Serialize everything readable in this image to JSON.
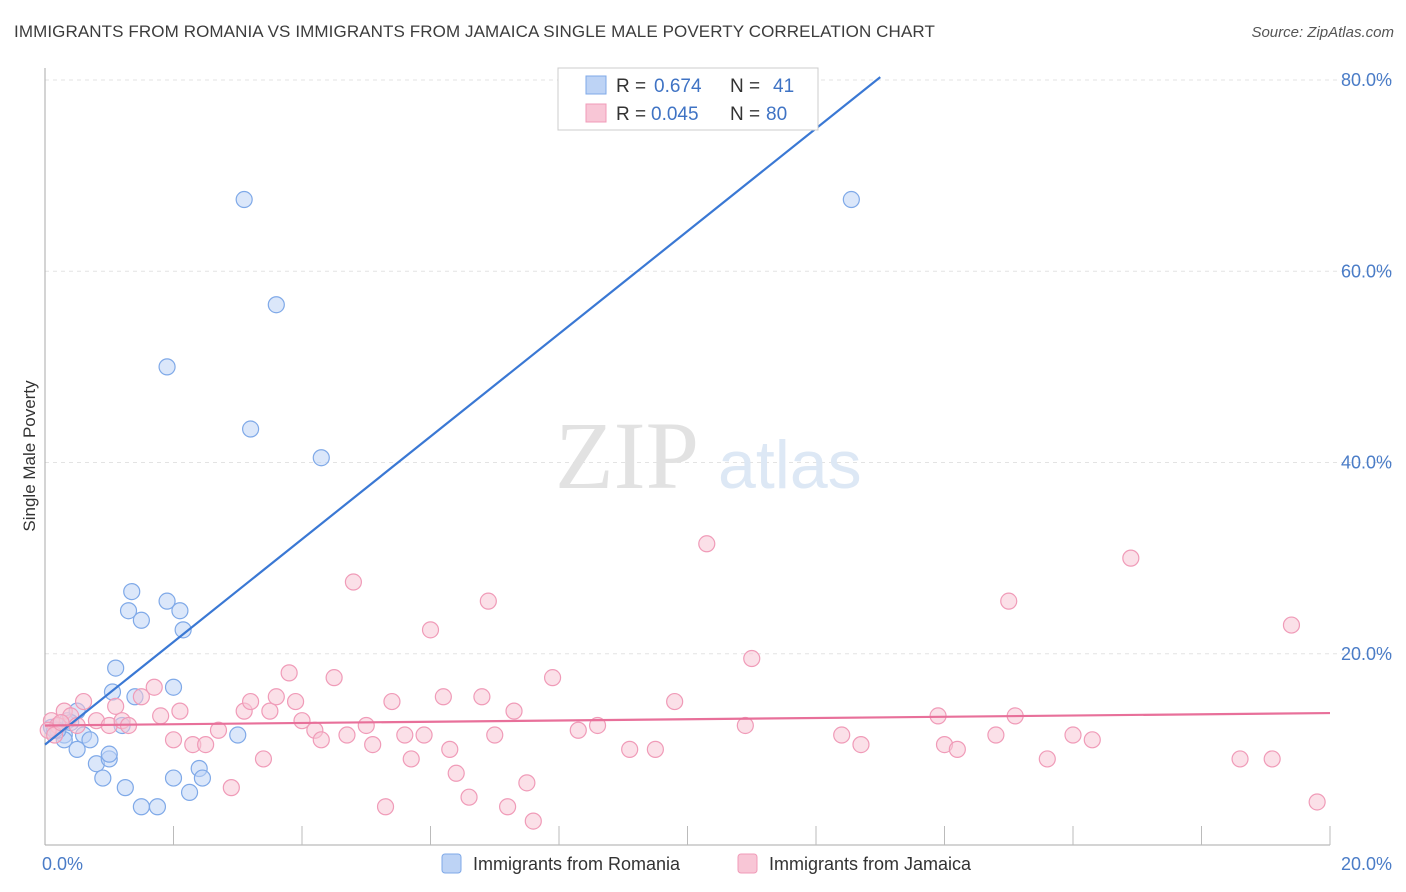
{
  "title": "IMMIGRANTS FROM ROMANIA VS IMMIGRANTS FROM JAMAICA SINGLE MALE POVERTY CORRELATION CHART",
  "source": "Source: ZipAtlas.com",
  "watermark": {
    "zip": "ZIP",
    "atlas": "atlas"
  },
  "legend": {
    "r_label": "R =",
    "n_label": "N =",
    "rows": [
      {
        "series": "Immigrants from Romania",
        "r": "0.674",
        "n": "41"
      },
      {
        "series": "Immigrants from Jamaica",
        "r": "0.045",
        "n": "80"
      }
    ]
  },
  "chart_data": {
    "type": "scatter",
    "title": "IMMIGRANTS FROM ROMANIA VS IMMIGRANTS FROM JAMAICA SINGLE MALE POVERTY CORRELATION CHART",
    "xlabel": "",
    "ylabel": "Single Male Poverty",
    "xlim": [
      0,
      20
    ],
    "ylim": [
      0,
      80
    ],
    "x_tick_labels": [
      "0.0%",
      "20.0%"
    ],
    "y_ticks": [
      20,
      40,
      60,
      80
    ],
    "y_tick_labels": [
      "20.0%",
      "40.0%",
      "60.0%",
      "80.0%"
    ],
    "grid": true,
    "legend_position": "top-center",
    "series": [
      {
        "name": "Immigrants from Romania",
        "color": "#7fa9e8",
        "fill": "#bdd3f5",
        "trend": {
          "x": [
            0,
            13.0
          ],
          "y": [
            10.5,
            80.3
          ],
          "color": "#3a78d4"
        },
        "points": [
          [
            0.1,
            12.3
          ],
          [
            0.2,
            12.5
          ],
          [
            0.3,
            11.5
          ],
          [
            0.35,
            13.0
          ],
          [
            0.5,
            14.0
          ],
          [
            0.6,
            11.5
          ],
          [
            0.7,
            11.0
          ],
          [
            0.5,
            10.0
          ],
          [
            0.3,
            11.0
          ],
          [
            0.8,
            8.5
          ],
          [
            0.9,
            7.0
          ],
          [
            1.0,
            9.0
          ],
          [
            1.0,
            9.5
          ],
          [
            1.1,
            18.5
          ],
          [
            1.05,
            16.0
          ],
          [
            1.2,
            12.5
          ],
          [
            1.25,
            6.0
          ],
          [
            1.3,
            24.5
          ],
          [
            1.35,
            26.5
          ],
          [
            1.4,
            15.5
          ],
          [
            1.5,
            23.5
          ],
          [
            1.5,
            4.0
          ],
          [
            1.75,
            4.0
          ],
          [
            1.9,
            50.0
          ],
          [
            1.9,
            25.5
          ],
          [
            2.0,
            7.0
          ],
          [
            2.0,
            16.5
          ],
          [
            2.1,
            24.5
          ],
          [
            2.15,
            22.5
          ],
          [
            2.25,
            5.5
          ],
          [
            2.4,
            8.0
          ],
          [
            2.45,
            7.0
          ],
          [
            3.0,
            11.5
          ],
          [
            3.1,
            67.5
          ],
          [
            3.2,
            43.5
          ],
          [
            3.6,
            56.5
          ],
          [
            4.3,
            40.5
          ],
          [
            12.55,
            67.5
          ],
          [
            0.2,
            12.0
          ],
          [
            0.4,
            12.8
          ],
          [
            0.15,
            12.0
          ]
        ]
      },
      {
        "name": "Immigrants from Jamaica",
        "color": "#f09bb8",
        "fill": "#f8c6d6",
        "trend": {
          "x": [
            0,
            20.0
          ],
          "y": [
            12.5,
            13.8
          ],
          "color": "#e8709a"
        },
        "points": [
          [
            0.1,
            13.0
          ],
          [
            0.2,
            12.5
          ],
          [
            0.3,
            14.0
          ],
          [
            0.4,
            13.5
          ],
          [
            0.6,
            15.0
          ],
          [
            0.8,
            13.0
          ],
          [
            1.0,
            12.5
          ],
          [
            1.1,
            14.5
          ],
          [
            1.2,
            13.0
          ],
          [
            1.3,
            12.5
          ],
          [
            1.5,
            15.5
          ],
          [
            1.7,
            16.5
          ],
          [
            1.8,
            13.5
          ],
          [
            2.0,
            11.0
          ],
          [
            2.1,
            14.0
          ],
          [
            2.3,
            10.5
          ],
          [
            2.5,
            10.5
          ],
          [
            2.7,
            12.0
          ],
          [
            2.9,
            6.0
          ],
          [
            3.1,
            14.0
          ],
          [
            3.2,
            15.0
          ],
          [
            3.4,
            9.0
          ],
          [
            3.5,
            14.0
          ],
          [
            3.6,
            15.5
          ],
          [
            3.8,
            18.0
          ],
          [
            3.9,
            15.0
          ],
          [
            4.0,
            13.0
          ],
          [
            4.2,
            12.0
          ],
          [
            4.3,
            11.0
          ],
          [
            4.5,
            17.5
          ],
          [
            4.7,
            11.5
          ],
          [
            4.8,
            27.5
          ],
          [
            5.0,
            12.5
          ],
          [
            5.1,
            10.5
          ],
          [
            5.3,
            4.0
          ],
          [
            5.4,
            15.0
          ],
          [
            5.6,
            11.5
          ],
          [
            5.7,
            9.0
          ],
          [
            5.9,
            11.5
          ],
          [
            6.0,
            22.5
          ],
          [
            6.2,
            15.5
          ],
          [
            6.3,
            10.0
          ],
          [
            6.4,
            7.5
          ],
          [
            6.6,
            5.0
          ],
          [
            6.8,
            15.5
          ],
          [
            6.9,
            25.5
          ],
          [
            7.0,
            11.5
          ],
          [
            7.2,
            4.0
          ],
          [
            7.3,
            14.0
          ],
          [
            7.5,
            6.5
          ],
          [
            7.6,
            2.5
          ],
          [
            7.9,
            17.5
          ],
          [
            8.3,
            12.0
          ],
          [
            8.6,
            12.5
          ],
          [
            9.1,
            10.0
          ],
          [
            9.5,
            10.0
          ],
          [
            9.8,
            15.0
          ],
          [
            10.3,
            31.5
          ],
          [
            10.9,
            12.5
          ],
          [
            11.0,
            19.5
          ],
          [
            12.4,
            11.5
          ],
          [
            12.7,
            10.5
          ],
          [
            13.9,
            13.5
          ],
          [
            14.0,
            10.5
          ],
          [
            14.2,
            10.0
          ],
          [
            14.8,
            11.5
          ],
          [
            15.0,
            25.5
          ],
          [
            15.1,
            13.5
          ],
          [
            15.6,
            9.0
          ],
          [
            16.0,
            11.5
          ],
          [
            16.3,
            11.0
          ],
          [
            16.9,
            30.0
          ],
          [
            18.6,
            9.0
          ],
          [
            19.1,
            9.0
          ],
          [
            19.4,
            23.0
          ],
          [
            19.8,
            4.5
          ],
          [
            0.05,
            12.0
          ],
          [
            0.15,
            11.5
          ],
          [
            0.25,
            12.8
          ],
          [
            0.5,
            12.5
          ]
        ]
      }
    ]
  },
  "bottom_legend": {
    "items": [
      {
        "label": "Immigrants from Romania"
      },
      {
        "label": "Immigrants from Jamaica"
      }
    ]
  }
}
